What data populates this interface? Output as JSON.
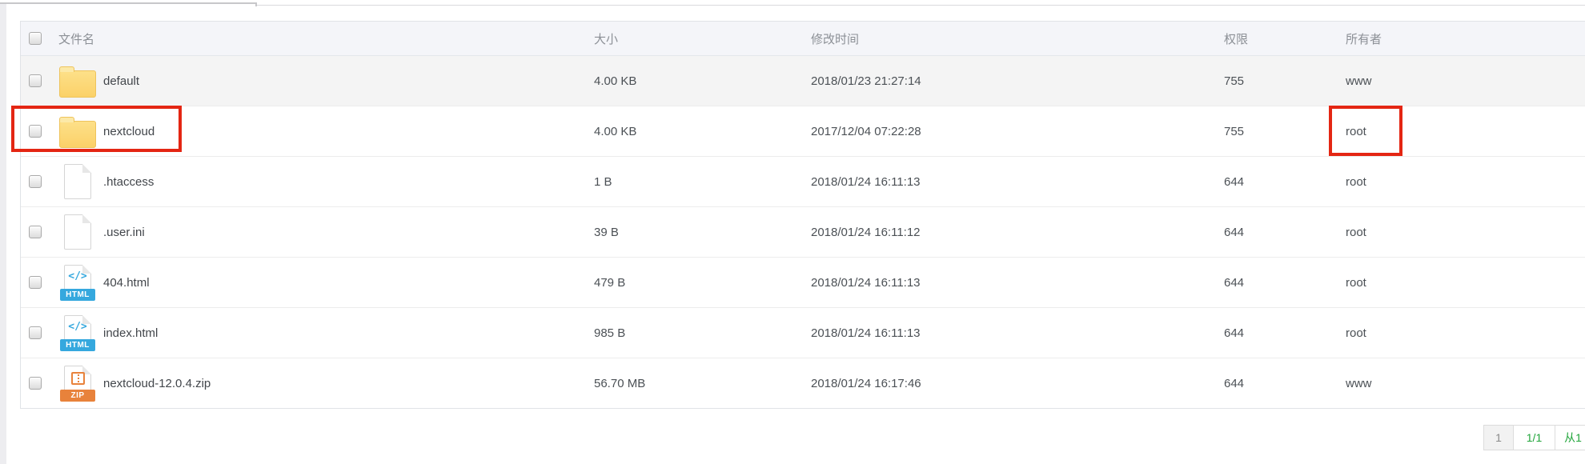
{
  "table": {
    "columns": {
      "name": "文件名",
      "size": "大小",
      "mtime": "修改时间",
      "perm": "权限",
      "owner": "所有者"
    },
    "rows": [
      {
        "name": "default",
        "type": "folder",
        "size": "4.00 KB",
        "mtime": "2018/01/23 21:27:14",
        "perm": "755",
        "owner": "www"
      },
      {
        "name": "nextcloud",
        "type": "folder",
        "size": "4.00 KB",
        "mtime": "2017/12/04 07:22:28",
        "perm": "755",
        "owner": "root"
      },
      {
        "name": ".htaccess",
        "type": "file",
        "size": "1 B",
        "mtime": "2018/01/24 16:11:13",
        "perm": "644",
        "owner": "root"
      },
      {
        "name": ".user.ini",
        "type": "file",
        "size": "39 B",
        "mtime": "2018/01/24 16:11:12",
        "perm": "644",
        "owner": "root"
      },
      {
        "name": "404.html",
        "type": "html",
        "glyph": "</>",
        "badge": "HTML",
        "size": "479 B",
        "mtime": "2018/01/24 16:11:13",
        "perm": "644",
        "owner": "root"
      },
      {
        "name": "index.html",
        "type": "html",
        "glyph": "</>",
        "badge": "HTML",
        "size": "985 B",
        "mtime": "2018/01/24 16:11:13",
        "perm": "644",
        "owner": "root"
      },
      {
        "name": "nextcloud-12.0.4.zip",
        "type": "zip",
        "badge": "ZIP",
        "size": "56.70 MB",
        "mtime": "2018/01/24 16:17:46",
        "perm": "644",
        "owner": "www"
      }
    ]
  },
  "annotations": {
    "highlighted_file": "nextcloud",
    "highlighted_owner": "root"
  },
  "pagination": {
    "current_page": "1",
    "page_info": "1/1",
    "per_page_prefix": "从1"
  },
  "colors": {
    "accent_green": "#20a53a",
    "annotation_red": "#e42613",
    "folder_yellow": "#fbd168",
    "html_blue": "#35a8de",
    "zip_orange": "#e8823b"
  }
}
